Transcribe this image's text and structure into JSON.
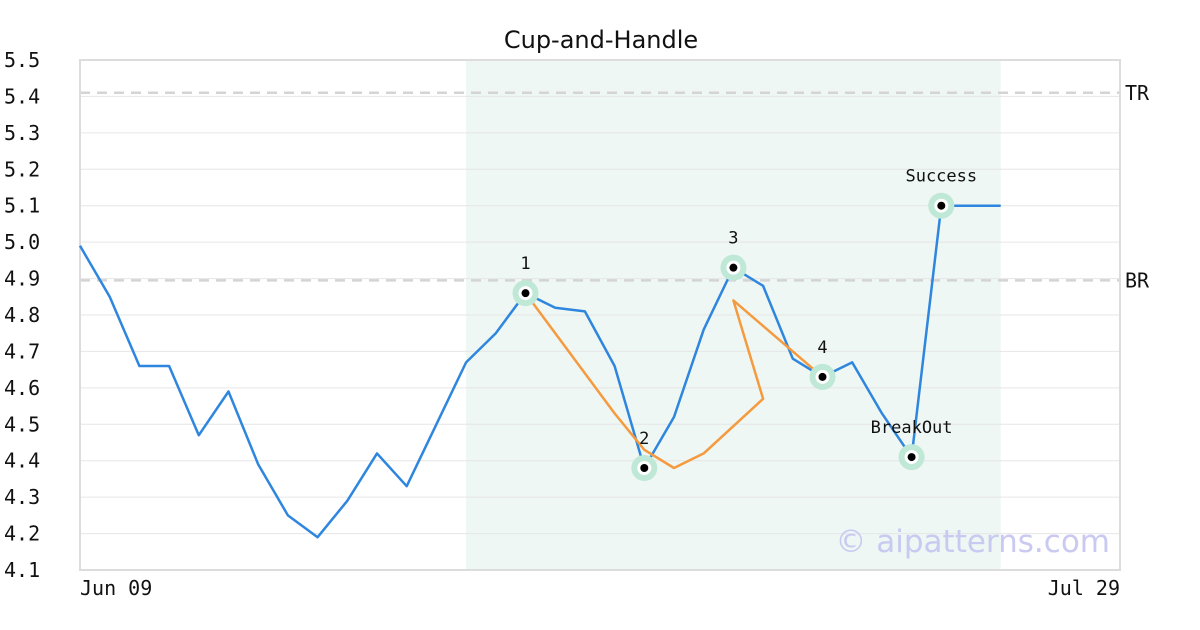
{
  "chart_data": {
    "type": "line",
    "title": "Cup-and-Handle",
    "x_start_label": "Jun 09",
    "x_end_label": "Jul 29",
    "ylim": [
      4.1,
      5.5
    ],
    "yticks": [
      "4.1",
      "4.2",
      "4.3",
      "4.4",
      "4.5",
      "4.6",
      "4.7",
      "4.8",
      "4.9",
      "5.0",
      "5.1",
      "5.2",
      "5.3",
      "5.4",
      "5.5"
    ],
    "grid": true,
    "series": [
      {
        "color": "#2e86de",
        "values": [
          4.99,
          4.85,
          4.66,
          4.66,
          4.47,
          4.59,
          4.39,
          4.25,
          4.19,
          4.29,
          4.42,
          4.33,
          4.5,
          4.67,
          4.75,
          4.86,
          4.82,
          4.81,
          4.66,
          4.38,
          4.52,
          4.76,
          4.93,
          4.88,
          4.68,
          4.63,
          4.67,
          4.53,
          4.41,
          5.1,
          5.1,
          5.1
        ]
      },
      {
        "color": "#f59a3e",
        "points": [
          [
            15,
            4.86
          ],
          [
            18,
            4.53
          ],
          [
            19,
            4.43
          ],
          [
            20,
            4.38
          ],
          [
            21,
            4.42
          ],
          [
            23,
            4.57
          ],
          [
            22,
            4.84
          ],
          [
            25,
            4.63
          ]
        ]
      }
    ],
    "pattern_region": {
      "start_index": 13,
      "end_index": 31,
      "color": "#eef7f3"
    },
    "levels": [
      {
        "label": "TR",
        "value": 5.41
      },
      {
        "label": "BR",
        "value": 4.895
      }
    ],
    "markers": [
      {
        "label": "1",
        "index": 15,
        "value": 4.86
      },
      {
        "label": "2",
        "index": 19,
        "value": 4.38
      },
      {
        "label": "3",
        "index": 22,
        "value": 4.93
      },
      {
        "label": "4",
        "index": 25,
        "value": 4.63
      },
      {
        "label": "BreakOut",
        "index": 28,
        "value": 4.41
      },
      {
        "label": "Success",
        "index": 29,
        "value": 5.1
      }
    ],
    "watermark": "© aipatterns.com"
  }
}
